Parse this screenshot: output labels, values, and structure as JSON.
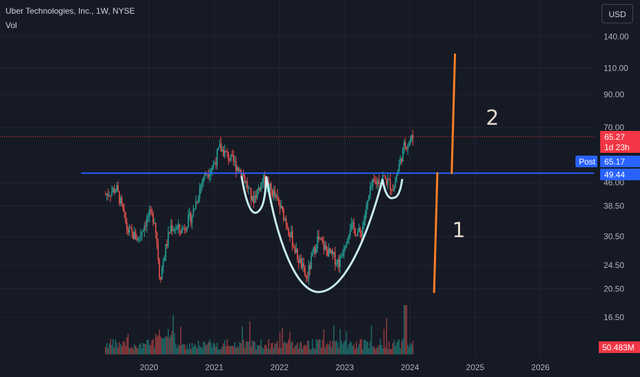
{
  "header": {
    "title": "Uber Technologies, Inc., 1W, NYSE",
    "volume_label": "Vol",
    "currency_button": "USD"
  },
  "colors": {
    "background": "#161a25",
    "grid": "#232734",
    "up": "#26a69a",
    "down": "#ef5350",
    "level_line": "#2962ff",
    "cup_handle": "#c8ecf1",
    "measured_move": "#ff7f27",
    "last_price_tag": "#f23645",
    "post_tag": "#2962ff"
  },
  "chart_data": {
    "type": "candlestick",
    "y_scale": "log",
    "y_ticks": [
      16.5,
      20.5,
      24.5,
      30.5,
      38.5,
      46.0,
      70.0,
      90.0,
      110.0,
      140.0
    ],
    "x_ticks": [
      "2020",
      "2021",
      "2022",
      "2023",
      "2024",
      "2025",
      "2026"
    ],
    "price_series": {
      "dates": [
        "2019-05",
        "2019-07",
        "2019-09",
        "2019-11",
        "2020-01",
        "2020-02",
        "2020-03",
        "2020-05",
        "2020-07",
        "2020-09",
        "2020-11",
        "2021-01",
        "2021-02",
        "2021-04",
        "2021-06",
        "2021-08",
        "2021-10",
        "2021-12",
        "2022-02",
        "2022-04",
        "2022-06",
        "2022-08",
        "2022-10",
        "2022-12",
        "2023-02",
        "2023-04",
        "2023-06",
        "2023-08",
        "2023-10",
        "2023-12"
      ],
      "close": [
        42,
        44,
        32,
        30,
        36,
        35,
        22,
        33,
        32,
        36,
        48,
        53,
        60,
        55,
        50,
        40,
        47,
        42,
        35,
        27,
        22,
        30,
        27,
        25,
        33,
        31,
        45,
        48,
        44,
        61
      ]
    },
    "volume_scale_max_m": 190,
    "levels": {
      "breakout_level": 49.44,
      "last_price": 65.27,
      "post_price": 65.17,
      "countdown": "1d 23h",
      "post_label": "Post",
      "volume_value": "50.483M"
    },
    "annotations": [
      {
        "text": "1",
        "type": "measured-move-leg",
        "from_price": 20.0,
        "to_price": 49.44
      },
      {
        "text": "2",
        "type": "measured-move-projection",
        "from_price": 49.44,
        "to_price": 122.0
      }
    ],
    "pattern": "cup-and-handle"
  }
}
